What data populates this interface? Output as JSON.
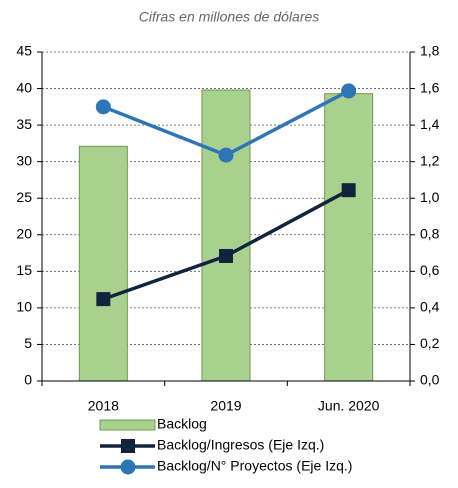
{
  "chart_data": {
    "type": "bar",
    "title": "Cifras en millones de dólares",
    "categories": [
      "2018",
      "2019",
      "Jun. 2020"
    ],
    "series": [
      {
        "name": "Backlog",
        "type": "bar",
        "color": "#a9d18e",
        "values": [
          32.1,
          39.8,
          39.3
        ]
      },
      {
        "name": "Backlog/Ingresos (Eje Izq.)",
        "type": "line",
        "marker": "square",
        "color": "#10243e",
        "values": [
          11.2,
          17.1,
          26.1
        ]
      },
      {
        "name": "Backlog/N° Proyectos (Eje Izq.)",
        "type": "line",
        "marker": "circle",
        "color": "#2e75b6",
        "axis": "y2",
        "values": [
          1.5,
          1.236,
          1.587
        ]
      }
    ],
    "ylim": [
      0,
      45
    ],
    "yticks": [
      0,
      5,
      10,
      15,
      20,
      25,
      30,
      35,
      40,
      45
    ],
    "y2lim": [
      0,
      1.8
    ],
    "y2ticks": [
      {
        "value": 0,
        "label": "0,0"
      },
      {
        "value": 0.2,
        "label": "0,2"
      },
      {
        "value": 0.4,
        "label": "0,4"
      },
      {
        "value": 0.6,
        "label": "0,6"
      },
      {
        "value": 0.8,
        "label": "0,8"
      },
      {
        "value": 1,
        "label": "1,0"
      },
      {
        "value": 1.2,
        "label": "1,2"
      },
      {
        "value": 1.4,
        "label": "1,4"
      },
      {
        "value": 1.6,
        "label": "1,6"
      },
      {
        "value": 1.8,
        "label": "1,8"
      }
    ],
    "grid": true,
    "legend": "bottom"
  }
}
